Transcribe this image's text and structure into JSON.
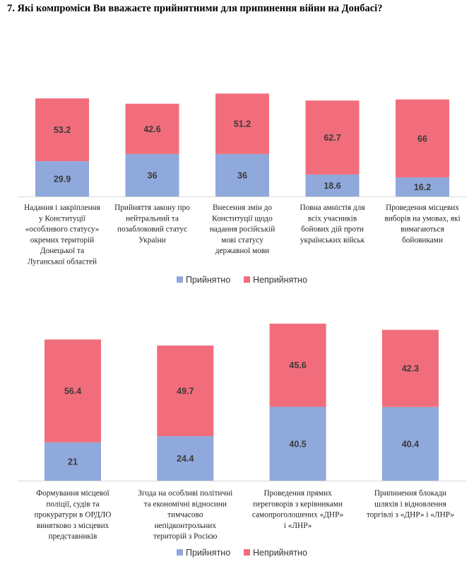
{
  "title": "7.  Які компроміси Ви вважаєте прийнятними для припинення війни на Донбасі?",
  "colors": {
    "accept": "#8fa9dc",
    "reject": "#f26d7b",
    "axis": "#d9d9d9"
  },
  "legend": {
    "accept": "Прийнятно",
    "reject": "Неприйнятно"
  },
  "chart_data": [
    {
      "type": "bar",
      "stacked": true,
      "categories": [
        [
          "Надання і закріплення",
          "у Конституції",
          "«особливого статусу»",
          "окремих територій",
          "Донецької та",
          "Луганської областей"
        ],
        [
          "Прийняття закону про",
          "нейтральний та",
          "позаблоковий статус",
          "України"
        ],
        [
          "Внесення змін до",
          "Конституції щодо",
          "надання російській",
          "мові статусу",
          "державної мови"
        ],
        [
          "Повна амністія для",
          "всіх учасників",
          "бойових дій проти",
          "українських військ"
        ],
        [
          "Проведення місцевих",
          "виборів на умовах, які",
          "вимагаються",
          "бойовиками"
        ]
      ],
      "series": [
        {
          "name": "Прийнятно",
          "values": [
            29.9,
            36,
            36,
            18.6,
            16.2
          ]
        },
        {
          "name": "Неприйнятно",
          "values": [
            53.2,
            42.6,
            51.2,
            62.7,
            66
          ]
        }
      ],
      "labels": [
        [
          "29.9",
          "36",
          "36",
          "18.6",
          "16.2"
        ],
        [
          "53.2",
          "42.6",
          "51.2",
          "62.7",
          "66"
        ]
      ],
      "ylim": [
        0,
        100
      ],
      "legend_position": "bottom"
    },
    {
      "type": "bar",
      "stacked": true,
      "categories": [
        [
          "Формування місцевої",
          "поліції, судів та",
          "прокуратури в ОРДЛО",
          "винятково з місцевих",
          "представників"
        ],
        [
          "Згода на особливі політичні",
          "та економічні відносини",
          "тимчасово",
          "непідконтрольних",
          "територій з Росією"
        ],
        [
          "Проведення прямих",
          "переговорів з керівниками",
          "самопроголошених «ДНР»",
          "і «ЛНР»"
        ],
        [
          "Припинення блокади",
          "шляхів і відновлення",
          "торгівлі з «ДНР» і «ЛНР»"
        ]
      ],
      "series": [
        {
          "name": "Прийнятно",
          "values": [
            21,
            24.4,
            40.5,
            40.4
          ]
        },
        {
          "name": "Неприйнятно",
          "values": [
            56.4,
            49.7,
            45.6,
            42.3
          ]
        }
      ],
      "labels": [
        [
          "21",
          "24.4",
          "40.5",
          "40.4"
        ],
        [
          "56.4",
          "49.7",
          "45.6",
          "42.3"
        ]
      ],
      "ylim": [
        0,
        100
      ],
      "legend_position": "bottom"
    }
  ]
}
